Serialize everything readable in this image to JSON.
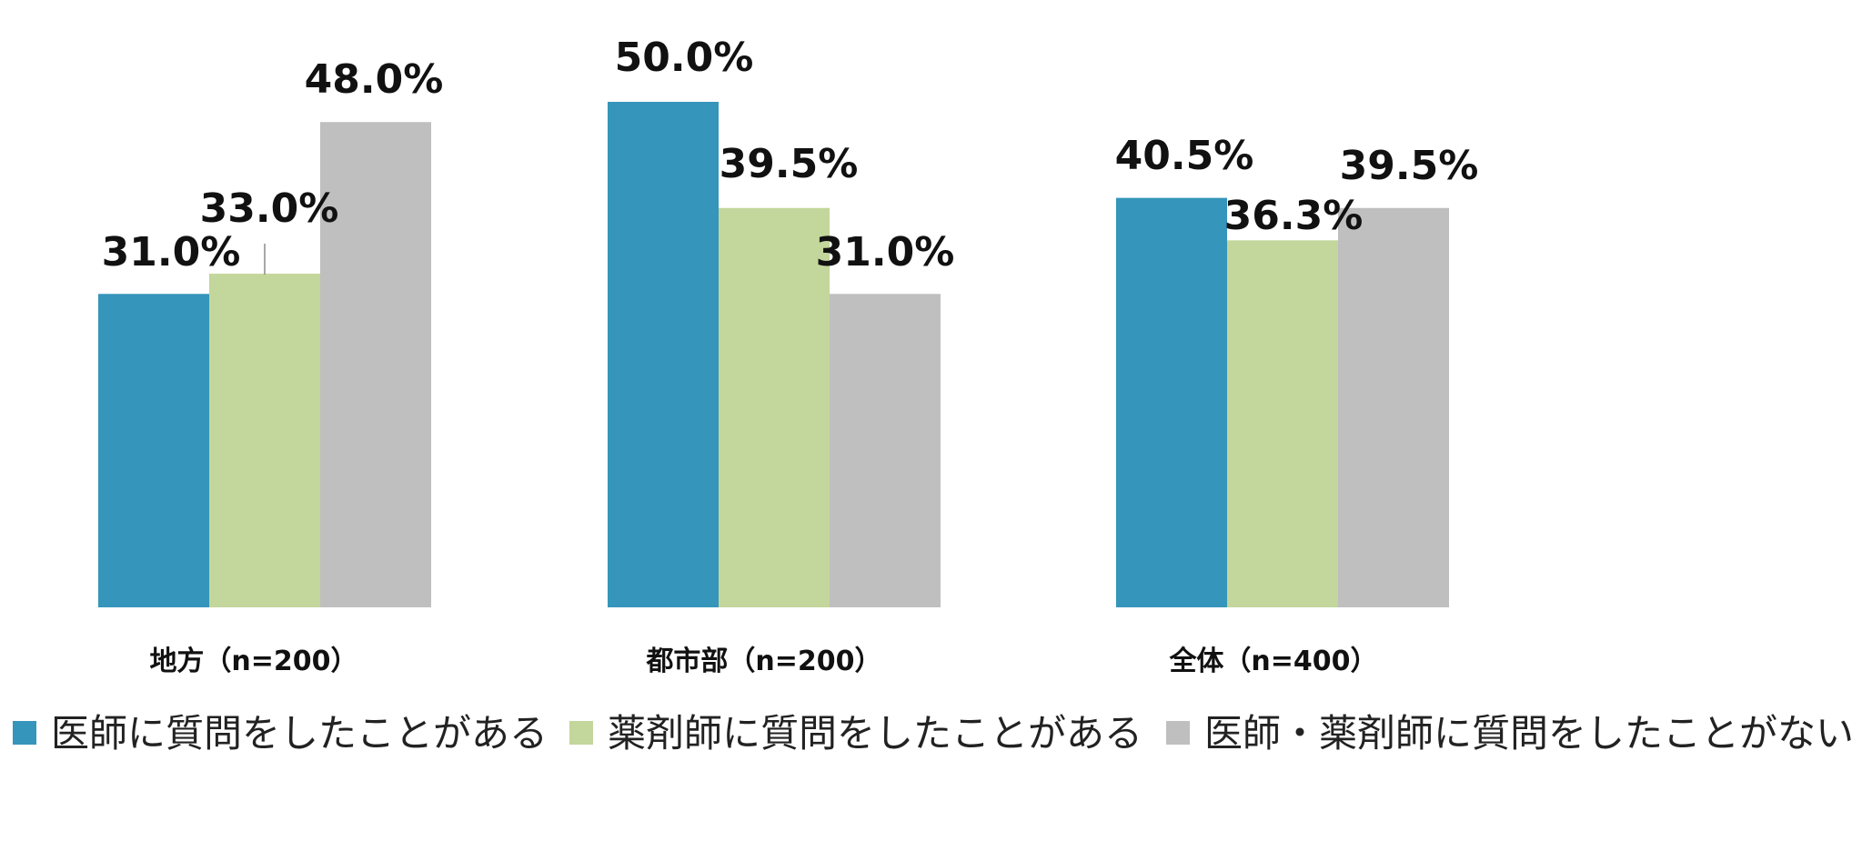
{
  "chart_data": {
    "type": "bar",
    "categories": [
      "地方（n=200）",
      "都市部（n=200）",
      "全体（n=400）"
    ],
    "series": [
      {
        "name": "医師に質問をしたことがある",
        "color": "#3595ba",
        "values": [
          31.0,
          50.0,
          40.5
        ],
        "labels": [
          "31.0%",
          "50.0%",
          "40.5%"
        ]
      },
      {
        "name": "薬剤師に質問をしたことがある",
        "color": "#c3d69b",
        "values": [
          33.0,
          39.5,
          36.3
        ],
        "labels": [
          "33.0%",
          "39.5%",
          "36.3%"
        ]
      },
      {
        "name": "医師・薬剤師に質問をしたことがない",
        "color": "#bfbfbf",
        "values": [
          48.0,
          31.0,
          39.5
        ],
        "labels": [
          "48.0%",
          "31.0%",
          "39.5%"
        ]
      }
    ],
    "ylim": [
      0,
      50
    ],
    "grid": false,
    "legend_position": "bottom",
    "title": "",
    "xlabel": "",
    "ylabel": ""
  }
}
